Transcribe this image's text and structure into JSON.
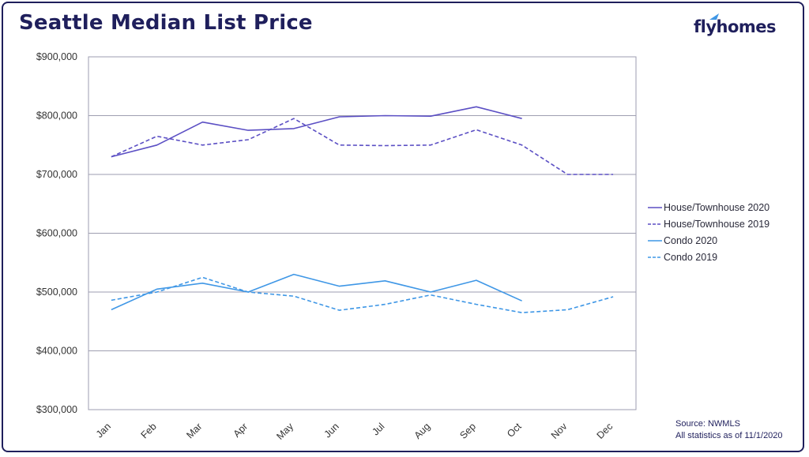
{
  "title": "Seattle Median List Price",
  "logo": {
    "text": "flyhomes"
  },
  "source": {
    "line1": "Source: NWMLS",
    "line2": "All statistics as of 11/1/2020"
  },
  "colors": {
    "house": "#5b4fc4",
    "condo": "#3f97e6",
    "grid": "#9e9eb0",
    "text": "#333333"
  },
  "chart_data": {
    "type": "line",
    "title": "Seattle Median List Price",
    "categories": [
      "Jan",
      "Feb",
      "Mar",
      "Apr",
      "May",
      "Jun",
      "Jul",
      "Aug",
      "Sep",
      "Oct",
      "Nov",
      "Dec"
    ],
    "ylim": [
      300000,
      900000
    ],
    "yticks": [
      300000,
      400000,
      500000,
      600000,
      700000,
      800000,
      900000
    ],
    "ytick_labels": [
      "$300,000",
      "$400,000",
      "$500,000",
      "$600,000",
      "$700,000",
      "$800,000",
      "$900,000"
    ],
    "grid": true,
    "legend_position": "right",
    "series": [
      {
        "name": "House/Townhouse 2020",
        "color": "#5b4fc4",
        "dash": false,
        "values": [
          730000,
          750000,
          789000,
          775000,
          778000,
          798000,
          800000,
          799000,
          815000,
          795000,
          null,
          null
        ]
      },
      {
        "name": "House/Townhouse 2019",
        "color": "#5b4fc4",
        "dash": true,
        "values": [
          730000,
          765000,
          750000,
          759000,
          795000,
          750000,
          749000,
          750000,
          776000,
          750000,
          700000,
          700000
        ]
      },
      {
        "name": "Condo 2020",
        "color": "#3f97e6",
        "dash": false,
        "values": [
          470000,
          505000,
          515000,
          500000,
          530000,
          510000,
          519000,
          500000,
          520000,
          485000,
          null,
          null
        ]
      },
      {
        "name": "Condo 2019",
        "color": "#3f97e6",
        "dash": true,
        "values": [
          486000,
          500000,
          525000,
          500000,
          493000,
          469000,
          479000,
          495000,
          479000,
          465000,
          470000,
          492000
        ]
      }
    ]
  }
}
